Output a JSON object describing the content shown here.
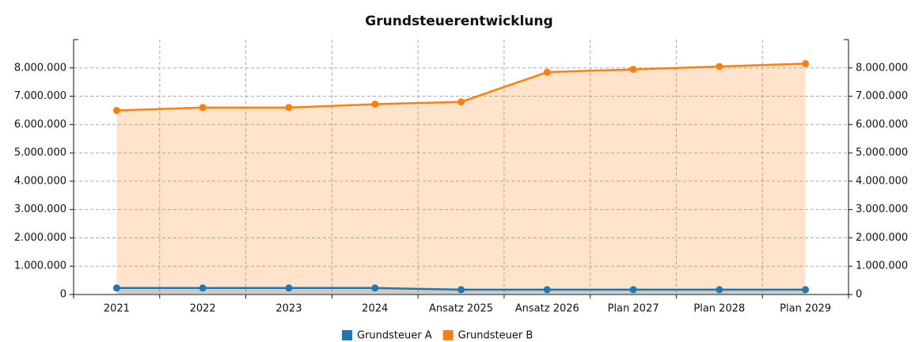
{
  "chart_data": {
    "type": "line",
    "title": "Grundsteuerentwicklung",
    "categories": [
      "2021",
      "2022",
      "2023",
      "2024",
      "Ansatz 2025",
      "Ansatz 2026",
      "Plan 2027",
      "Plan 2028",
      "Plan 2029"
    ],
    "series": [
      {
        "name": "Grundsteuer A",
        "color": "#1f77b4",
        "values": [
          230000,
          230000,
          230000,
          230000,
          170000,
          170000,
          170000,
          170000,
          170000
        ]
      },
      {
        "name": "Grundsteuer B",
        "color": "#ff7f0e",
        "values": [
          6500000,
          6600000,
          6600000,
          6720000,
          6800000,
          7850000,
          7950000,
          8050000,
          8150000
        ]
      }
    ],
    "ylim": [
      0,
      9000000
    ],
    "yticks": [
      0,
      {
        "value": 1000000,
        "label": "1.000.000"
      },
      {
        "value": 2000000,
        "label": "2.000.000"
      },
      {
        "value": 3000000,
        "label": "3.000.000"
      },
      {
        "value": 4000000,
        "label": "4.000.000"
      },
      {
        "value": 5000000,
        "label": "5.000.000"
      },
      {
        "value": 6000000,
        "label": "6.000.000"
      },
      {
        "value": 7000000,
        "label": "7.000.000"
      },
      {
        "value": 8000000,
        "label": "8.000.000"
      }
    ],
    "y2lim": [
      0,
      9000000
    ],
    "y2ticks": [
      0,
      {
        "value": 1000000,
        "label": "1.000.000"
      },
      {
        "value": 2000000,
        "label": "2.000.000"
      },
      {
        "value": 3000000,
        "label": "3.000.000"
      },
      {
        "value": 4000000,
        "label": "4.000.000"
      },
      {
        "value": 5000000,
        "label": "5.000.000"
      },
      {
        "value": 6000000,
        "label": "6.000.000"
      },
      {
        "value": 7000000,
        "label": "7.000.000"
      },
      {
        "value": 8000000,
        "label": "8.000.000"
      }
    ],
    "grid": true,
    "legend": "bottom"
  }
}
